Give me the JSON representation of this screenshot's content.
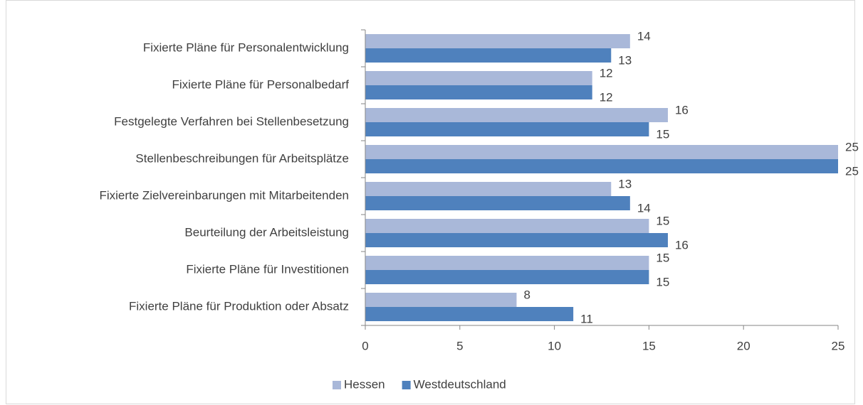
{
  "chart_data": {
    "type": "bar",
    "orientation": "horizontal",
    "categories": [
      "Fixierte Pläne für Personalentwicklung",
      "Fixierte Pläne für Personalbedarf",
      "Festgelegte Verfahren bei Stellenbesetzung",
      "Stellenbeschreibungen für Arbeitsplätze",
      "Fixierte Zielvereinbarungen mit Mitarbeitenden",
      "Beurteilung der Arbeitsleistung",
      "Fixierte Pläne für Investitionen",
      "Fixierte Pläne für Produktion oder Absatz"
    ],
    "series": [
      {
        "name": "Hessen",
        "color": "#a9b8d9",
        "values": [
          14,
          12,
          16,
          25,
          13,
          15,
          15,
          8
        ]
      },
      {
        "name": "Westdeutschland",
        "color": "#4f81bd",
        "values": [
          13,
          12,
          15,
          25,
          14,
          16,
          15,
          11
        ]
      }
    ],
    "xlim": [
      0,
      25
    ],
    "xticks": [
      0,
      5,
      10,
      15,
      20,
      25
    ],
    "grid": false,
    "legend": "bottom"
  }
}
